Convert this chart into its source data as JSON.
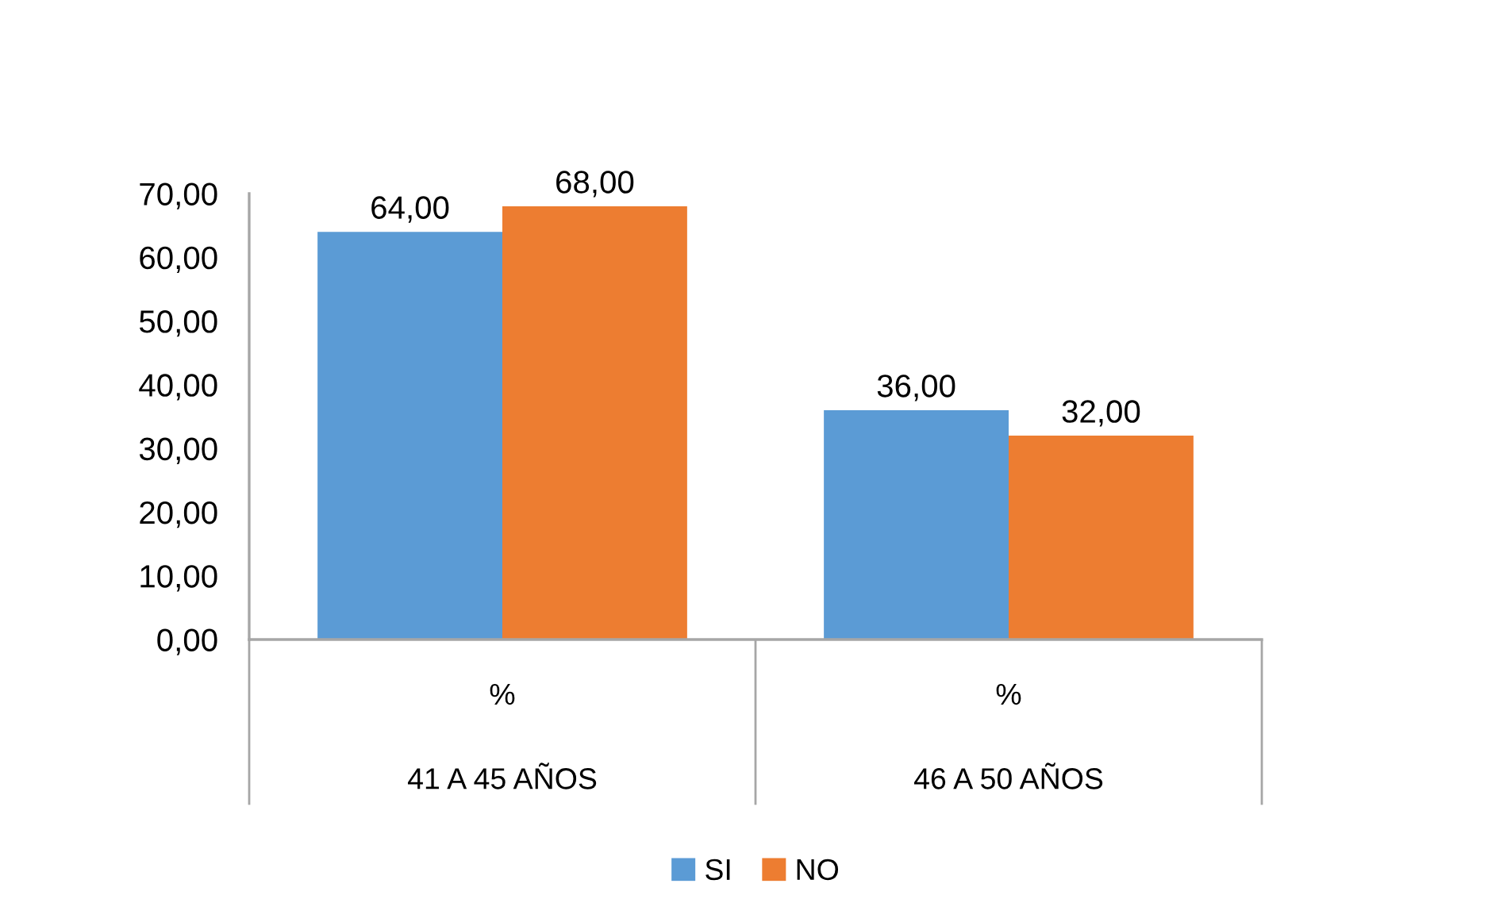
{
  "chart_data": {
    "type": "bar",
    "categories": [
      "41 A 45 AÑOS",
      "46 A 50 AÑOS"
    ],
    "series": [
      {
        "name": "SI",
        "color": "#5b9bd5",
        "values": [
          64,
          36
        ],
        "value_labels": [
          "64,00",
          "36,00"
        ]
      },
      {
        "name": "NO",
        "color": "#ed7d31",
        "values": [
          68,
          32
        ],
        "value_labels": [
          "68,00",
          "32,00"
        ]
      }
    ],
    "ylim": [
      0,
      70
    ],
    "yticks": [
      {
        "value": 0,
        "label": "0,00"
      },
      {
        "value": 10,
        "label": "10,00"
      },
      {
        "value": 20,
        "label": "20,00"
      },
      {
        "value": 30,
        "label": "30,00"
      },
      {
        "value": 40,
        "label": "40,00"
      },
      {
        "value": 50,
        "label": "50,00"
      },
      {
        "value": 60,
        "label": "60,00"
      },
      {
        "value": 70,
        "label": "70,00"
      }
    ],
    "grid": false,
    "legend": "bottom",
    "annotations": [
      "%",
      "%"
    ]
  }
}
